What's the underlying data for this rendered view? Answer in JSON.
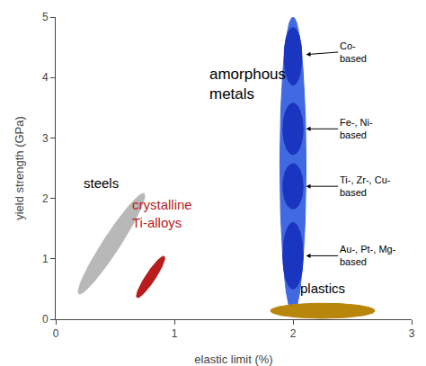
{
  "chart_data": {
    "type": "region",
    "xlabel": "elastic limit (%)",
    "ylabel": "yield strength (GPa)",
    "xlim": [
      0,
      3
    ],
    "ylim": [
      0,
      5
    ],
    "xticks": [
      0,
      1,
      2,
      3
    ],
    "yticks": [
      0,
      1,
      2,
      3,
      4,
      5
    ],
    "grid": false,
    "regions": [
      {
        "cx": 2.0,
        "cy": 2.55,
        "width": 0.22,
        "height": 4.9,
        "angle": 0,
        "color": "#4169e1"
      },
      {
        "cx": 2.0,
        "cy": 4.35,
        "width": 0.15,
        "height": 0.95,
        "angle": 0,
        "color": "#1a35c0"
      },
      {
        "cx": 2.0,
        "cy": 3.15,
        "width": 0.17,
        "height": 0.85,
        "angle": 0,
        "color": "#1a35c0"
      },
      {
        "cx": 2.0,
        "cy": 2.2,
        "width": 0.17,
        "height": 0.75,
        "angle": 0,
        "color": "#1a35c0"
      },
      {
        "cx": 2.0,
        "cy": 1.05,
        "width": 0.17,
        "height": 1.1,
        "angle": 0,
        "color": "#1a35c0"
      },
      {
        "cx": 2.25,
        "cy": 0.14,
        "width": 0.88,
        "height": 0.25,
        "angle": 0,
        "color": "#b8860b",
        "label": "plastics",
        "label_x": 2.25,
        "label_y": 0.35
      },
      {
        "cx": 0.47,
        "cy": 1.25,
        "width": 0.16,
        "height": 1.75,
        "angle": -18,
        "color": "#b8b8b8",
        "label": "steels",
        "label_x": 0.22,
        "label_y": 2.1
      },
      {
        "cx": 0.8,
        "cy": 0.7,
        "width": 0.09,
        "height": 0.72,
        "angle": -18,
        "color": "#b81c1c",
        "label": "crystalline\nTi-alloys",
        "label_x": 0.63,
        "label_y": 1.45,
        "label_color": "#b81c1c"
      }
    ],
    "texts": [
      {
        "text": "amorphous\nmetals",
        "x": 1.28,
        "y": 3.55
      }
    ],
    "annotations": [
      {
        "text": "Co-\nbased",
        "x": 2.11,
        "y": 4.38,
        "text_x": 2.38,
        "text_y": 4.42
      },
      {
        "text": "Fe-, Ni-\nbased",
        "x": 2.11,
        "y": 3.15,
        "text_x": 2.38,
        "text_y": 3.15
      },
      {
        "text": "Ti-, Zr-, Cu-\nbased",
        "x": 2.11,
        "y": 2.2,
        "text_x": 2.38,
        "text_y": 2.2
      },
      {
        "text": "Au-, Pt-, Mg-\nbased",
        "x": 2.11,
        "y": 1.05,
        "text_x": 2.38,
        "text_y": 1.05
      }
    ]
  }
}
